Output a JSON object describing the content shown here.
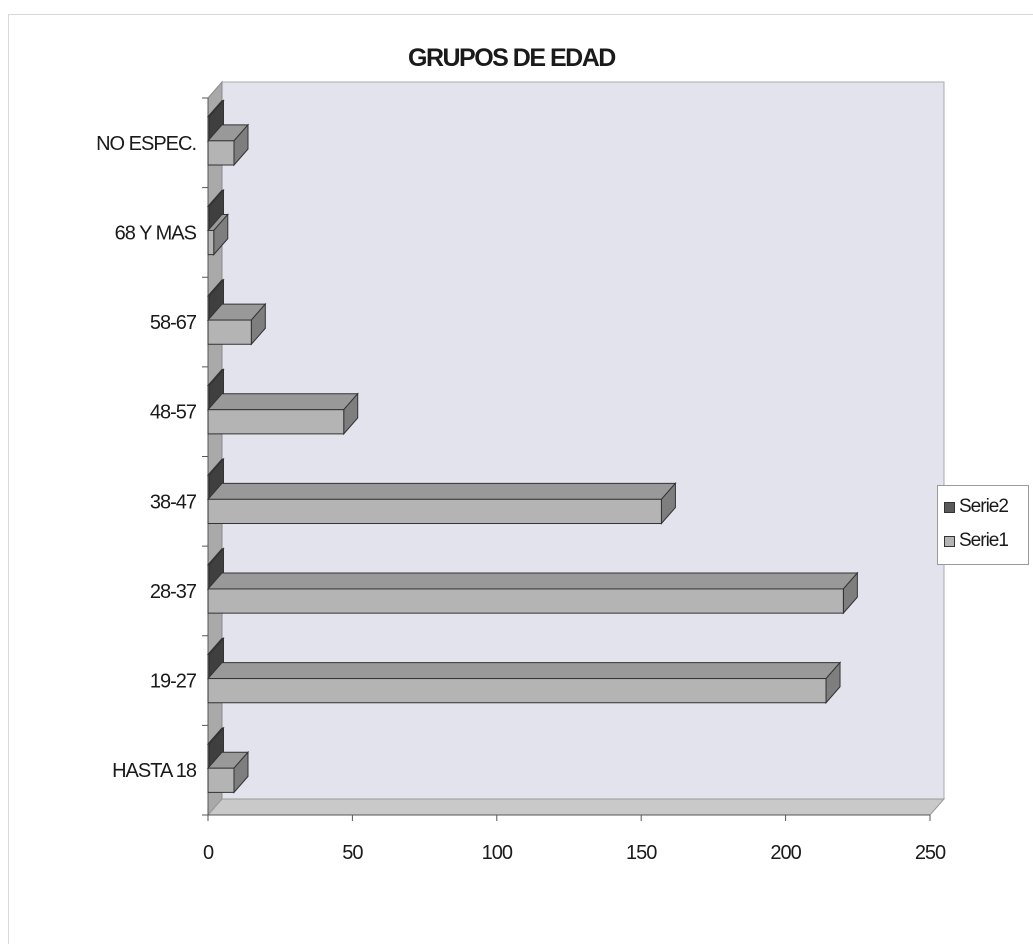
{
  "chart_data": {
    "type": "bar",
    "orientation": "horizontal",
    "three_d": true,
    "title": "GRUPOS DE EDAD",
    "categories": [
      "HASTA 18",
      "19-27",
      "28-37",
      "38-47",
      "48-57",
      "58-67",
      "68 Y MAS",
      "NO ESPEC."
    ],
    "series": [
      {
        "name": "Serie2",
        "values": [
          0,
          0,
          0,
          0,
          0,
          0,
          0,
          0
        ],
        "color": "#5a5a5a"
      },
      {
        "name": "Serie1",
        "values": [
          9,
          214,
          220,
          157,
          47,
          15,
          2,
          9
        ],
        "color": "#b4b4b4"
      }
    ],
    "xlim": [
      0,
      250
    ],
    "xticks": [
      "0",
      "50",
      "100",
      "150",
      "200",
      "250"
    ],
    "legend_position": "right",
    "wall_color": "#e3e3ee"
  }
}
